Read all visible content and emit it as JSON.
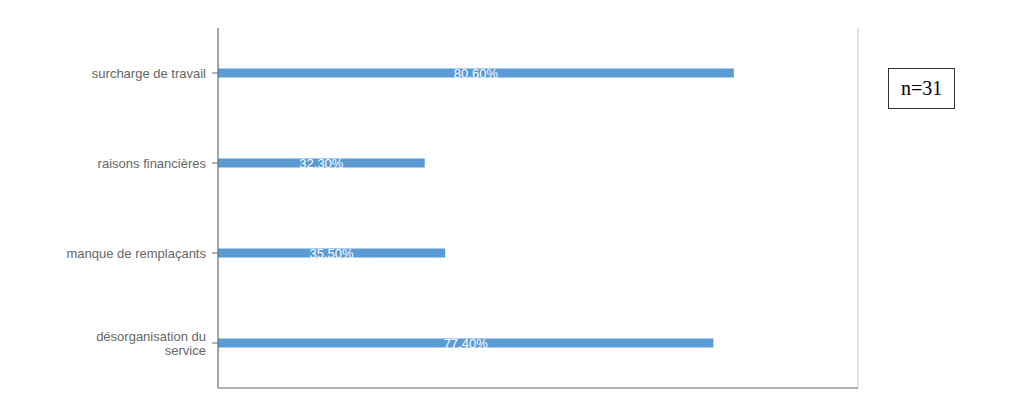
{
  "chart_data": {
    "type": "bar",
    "orientation": "horizontal",
    "categories": [
      "surcharge de travail",
      "raisons financières",
      "manque de remplaçants",
      "désorganisation du\nservice"
    ],
    "values": [
      80.6,
      32.3,
      35.5,
      77.4
    ],
    "value_labels": [
      "80,60%",
      "32,30%",
      "35,50%",
      "77,40%"
    ],
    "data_labels": true,
    "color": "#5B9BD5",
    "xlim": [
      0,
      100
    ],
    "xticks": [
      0,
      20,
      40,
      60,
      80,
      100
    ],
    "grid": true,
    "tick_labels": "y",
    "annotation": "n=31"
  }
}
